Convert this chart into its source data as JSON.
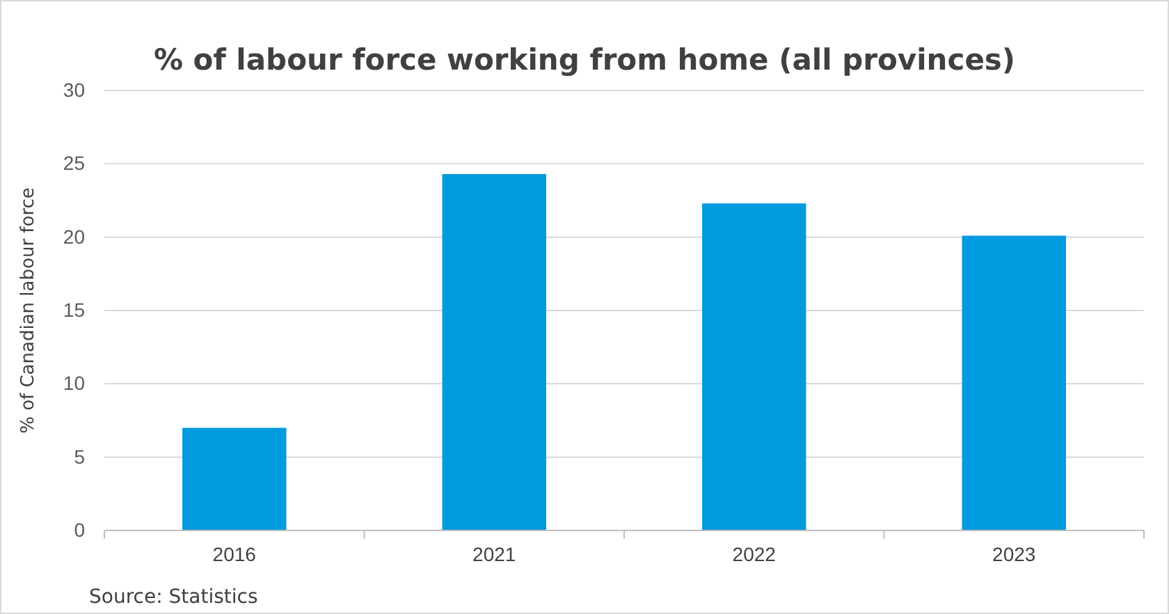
{
  "chart_data": {
    "type": "bar",
    "title": "% of labour force working from home (all provinces)",
    "ylabel": "% of Canadian labour force",
    "categories": [
      "2016",
      "2021",
      "2022",
      "2023"
    ],
    "values": [
      7.0,
      24.3,
      22.3,
      20.1
    ],
    "color": "#009ade",
    "ylim": [
      0,
      30
    ],
    "yticks": [
      0,
      5,
      10,
      15,
      20,
      25,
      30
    ],
    "grid": "y",
    "annotations": [
      "Source: Statistics"
    ]
  }
}
